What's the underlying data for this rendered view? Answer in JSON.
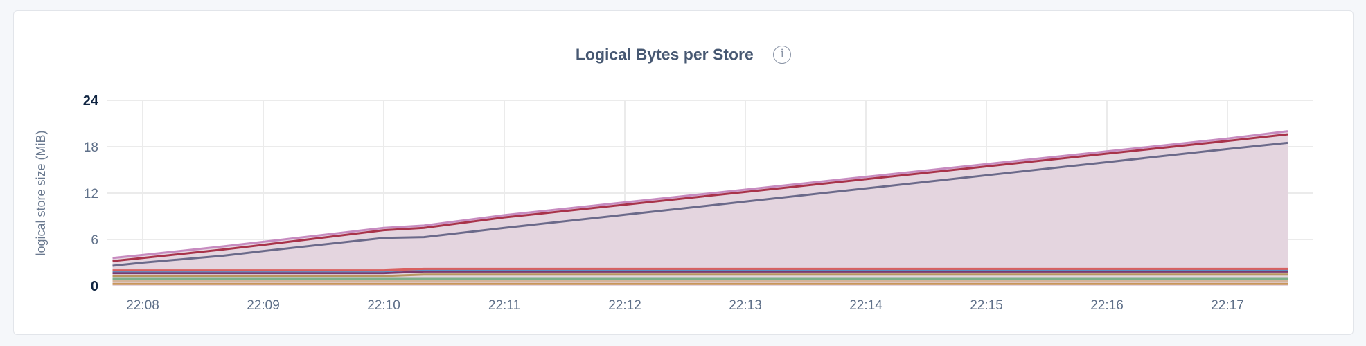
{
  "title": "Logical Bytes per Store",
  "info_icon": "info-circle-icon",
  "info_glyph": "i",
  "chart_data": {
    "type": "area",
    "stacked": true,
    "title": "Logical Bytes per Store",
    "xlabel": "",
    "ylabel": "logical store size (MiB)",
    "ylim": [
      0,
      24
    ],
    "yticks": [
      "0",
      "6",
      "12",
      "18",
      "24"
    ],
    "xticks": [
      "22:08",
      "22:09",
      "22:10",
      "22:11",
      "22:12",
      "22:13",
      "22:14",
      "22:15",
      "22:16",
      "22:17"
    ],
    "grid": true,
    "legend": "none",
    "fill_color": "#e4d5df",
    "x": [
      "22:07:45",
      "22:08:00",
      "22:08:40",
      "22:09:00",
      "22:10:00",
      "22:10:20",
      "22:11:00",
      "22:12:00",
      "22:13:00",
      "22:14:00",
      "22:15:00",
      "22:16:00",
      "22:17:00",
      "22:17:30"
    ],
    "series": [
      {
        "color": "#c8965a",
        "values": [
          0.25,
          0.25,
          0.25,
          0.25,
          0.25,
          0.25,
          0.25,
          0.25,
          0.25,
          0.25,
          0.25,
          0.25,
          0.25,
          0.25
        ]
      },
      {
        "color": "#d4b49a",
        "values": [
          0.35,
          0.35,
          0.35,
          0.35,
          0.35,
          0.35,
          0.35,
          0.35,
          0.35,
          0.35,
          0.35,
          0.35,
          0.35,
          0.35
        ]
      },
      {
        "color": "#7fb08a",
        "values": [
          0.3,
          0.3,
          0.3,
          0.3,
          0.3,
          0.3,
          0.3,
          0.3,
          0.3,
          0.3,
          0.3,
          0.3,
          0.3,
          0.3
        ]
      },
      {
        "color": "#b89660",
        "values": [
          0.35,
          0.35,
          0.35,
          0.35,
          0.35,
          0.55,
          0.55,
          0.55,
          0.55,
          0.55,
          0.55,
          0.55,
          0.55,
          0.55
        ]
      },
      {
        "color": "#7a3a6e",
        "values": [
          0.4,
          0.4,
          0.4,
          0.4,
          0.4,
          0.4,
          0.4,
          0.4,
          0.4,
          0.4,
          0.4,
          0.4,
          0.4,
          0.4
        ]
      },
      {
        "color": "#5b8ec4",
        "values": [
          0.25,
          0.25,
          0.25,
          0.25,
          0.25,
          0.25,
          0.25,
          0.25,
          0.25,
          0.25,
          0.25,
          0.25,
          0.25,
          0.25
        ]
      },
      {
        "color": "#d9605f",
        "values": [
          0.1,
          0.1,
          0.1,
          0.1,
          0.1,
          0.1,
          0.1,
          0.1,
          0.1,
          0.1,
          0.1,
          0.1,
          0.1,
          0.1
        ]
      },
      {
        "color": "#6b6a8a",
        "values": [
          0.6,
          1.0,
          1.9,
          2.5,
          4.2,
          4.1,
          5.3,
          7.0,
          8.7,
          10.4,
          12.1,
          13.8,
          15.5,
          16.3
        ]
      },
      {
        "color": "#a8334a",
        "values": [
          0.6,
          0.6,
          0.8,
          0.8,
          1.0,
          1.2,
          1.35,
          1.3,
          1.25,
          1.2,
          1.15,
          1.1,
          1.05,
          1.1
        ]
      },
      {
        "color": "#c78bc0",
        "values": [
          0.4,
          0.4,
          0.4,
          0.4,
          0.3,
          0.3,
          0.3,
          0.3,
          0.3,
          0.3,
          0.3,
          0.3,
          0.3,
          0.4
        ]
      }
    ]
  }
}
